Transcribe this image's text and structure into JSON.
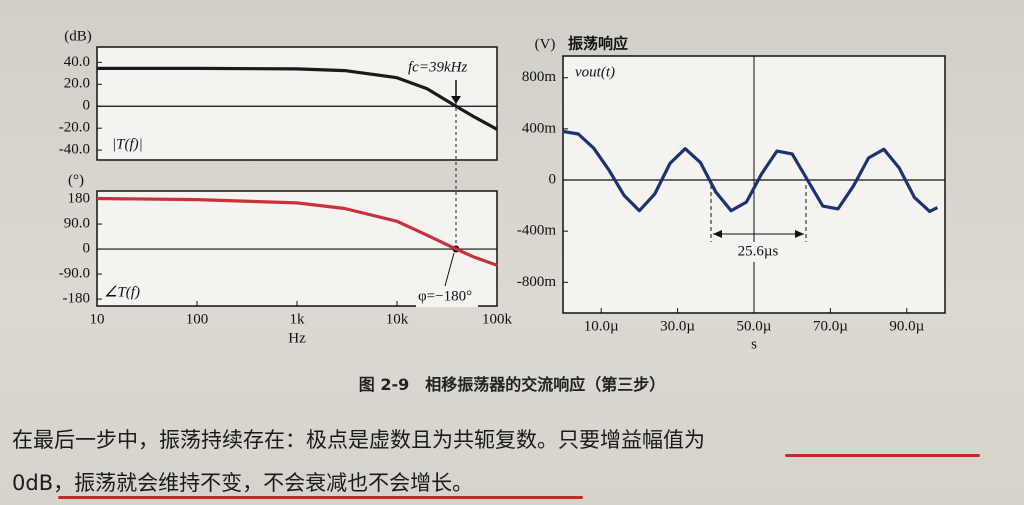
{
  "chart_data": [
    {
      "type": "line",
      "ylabel": "(dB)",
      "xscale": "log",
      "xlim": [
        10,
        100000
      ],
      "ylim": [
        -49,
        54
      ],
      "yticks": [
        {
          "value": 40,
          "label": "40.0"
        },
        {
          "value": 20,
          "label": "20.0"
        },
        0,
        {
          "value": -20,
          "label": "-20.0"
        },
        {
          "value": -40,
          "label": "-40.0"
        }
      ],
      "x": [
        10,
        100,
        1000,
        3000,
        10000,
        20000,
        39000,
        60000,
        100000
      ],
      "values": [
        34.5,
        34.5,
        34,
        32.5,
        26,
        16,
        0,
        -10,
        -21
      ],
      "color": "#1a1a1a",
      "annotations": [
        "fc=39kHz",
        "|T(f)|"
      ]
    },
    {
      "type": "line",
      "ylabel": "(°)",
      "xlabel": "Hz",
      "xscale": "log",
      "xlim": [
        10,
        100000
      ],
      "ylim": [
        -205,
        209
      ],
      "yticks": [
        180,
        {
          "value": 90,
          "label": "90.0"
        },
        0,
        {
          "value": -90,
          "label": "-90.0"
        },
        -180
      ],
      "xticks": [
        10,
        100,
        {
          "value": 1000,
          "label": "1k"
        },
        {
          "value": 10000,
          "label": "10k"
        },
        {
          "value": 100000,
          "label": "100k"
        }
      ],
      "x": [
        10,
        100,
        1000,
        3000,
        10000,
        20000,
        39000,
        60000,
        100000
      ],
      "values": [
        182,
        178,
        166,
        146,
        100,
        50,
        0,
        -30,
        -58
      ],
      "color": "#c8323a",
      "annotations": [
        "φ=−180°",
        "∠T(f)"
      ]
    },
    {
      "type": "line",
      "title": "振荡响应",
      "ylabel": "(V)",
      "xlabel": "s",
      "xlim": [
        0,
        0.0001
      ],
      "ylim": [
        -1.04,
        0.97
      ],
      "yticks": [
        {
          "value": 0.8,
          "label": "800m"
        },
        {
          "value": 0.4,
          "label": "400m"
        },
        0,
        {
          "value": -0.4,
          "label": "-400m"
        },
        {
          "value": -0.8,
          "label": "-800m"
        }
      ],
      "xticks": [
        {
          "value": 1e-05,
          "label": "10.0µ"
        },
        {
          "value": 3e-05,
          "label": "30.0µ"
        },
        {
          "value": 5e-05,
          "label": "50.0µ"
        },
        {
          "value": 7e-05,
          "label": "70.0µ"
        },
        {
          "value": 9e-05,
          "label": "90.0µ"
        }
      ],
      "x": [
        0,
        4e-06,
        8e-06,
        1.2e-05,
        1.6e-05,
        2e-05,
        2.4e-05,
        2.8e-05,
        3.2e-05,
        3.6e-05,
        4e-05,
        4.4e-05,
        4.8e-05,
        5.2e-05,
        5.6e-05,
        6e-05,
        6.4e-05,
        6.8e-05,
        7.2e-05,
        7.6e-05,
        8e-05,
        8.4e-05,
        8.8e-05,
        9.2e-05,
        9.6e-05,
        9.8e-05
      ],
      "values": [
        0.38,
        0.36,
        0.25,
        0.08,
        -0.12,
        -0.24,
        -0.11,
        0.13,
        0.245,
        0.136,
        -0.094,
        -0.24,
        -0.173,
        0.048,
        0.226,
        0.204,
        0,
        -0.204,
        -0.226,
        -0.048,
        0.173,
        0.24,
        0.094,
        -0.136,
        -0.245,
        -0.216
      ],
      "color": "#1e3270",
      "annotations": [
        "vout(t)",
        "25.6µs"
      ]
    }
  ],
  "caption": "图 2-9　相移振荡器的交流响应（第三步）",
  "paragraph": [
    "在最后一步中，振荡持续存在：极点是虚数且为共轭复数。只要增益幅值为",
    "0dB，振荡就会维持不变，不会衰减也不会增长。"
  ]
}
